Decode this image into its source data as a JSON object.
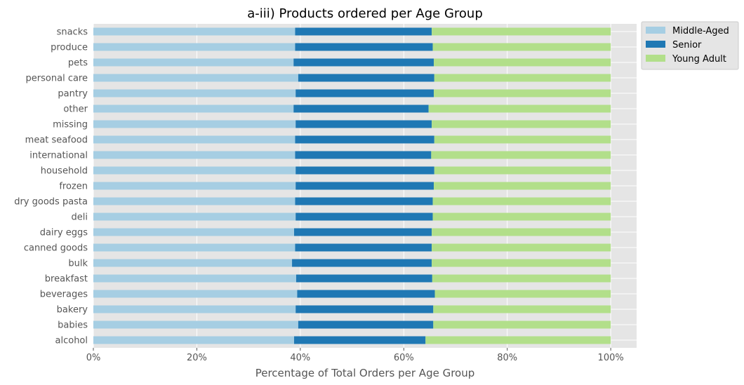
{
  "chart_data": {
    "type": "bar",
    "orientation": "horizontal",
    "stacked": true,
    "title": "a-iii) Products ordered per Age Group",
    "xlabel": "Percentage of Total Orders per Age Group",
    "ylabel": "",
    "xlim": [
      0,
      1.05
    ],
    "xticks": [
      0,
      0.2,
      0.4,
      0.6,
      0.8,
      1.0
    ],
    "xtick_labels": [
      "0%",
      "20%",
      "40%",
      "60%",
      "80%",
      "100%"
    ],
    "grid": true,
    "legend_placement": "outside-top-right",
    "categories": [
      "alcohol",
      "babies",
      "bakery",
      "beverages",
      "breakfast",
      "bulk",
      "canned goods",
      "dairy eggs",
      "deli",
      "dry goods pasta",
      "frozen",
      "household",
      "international",
      "meat seafood",
      "missing",
      "other",
      "pantry",
      "personal care",
      "pets",
      "produce",
      "snacks"
    ],
    "series": [
      {
        "name": "Middle-Aged",
        "color": "#a6cee3",
        "values": [
          0.388,
          0.396,
          0.391,
          0.394,
          0.392,
          0.384,
          0.39,
          0.388,
          0.391,
          0.39,
          0.391,
          0.391,
          0.39,
          0.39,
          0.391,
          0.387,
          0.391,
          0.396,
          0.387,
          0.39,
          0.39
        ]
      },
      {
        "name": "Senior",
        "color": "#1f78b4",
        "values": [
          0.254,
          0.261,
          0.266,
          0.266,
          0.263,
          0.27,
          0.264,
          0.266,
          0.265,
          0.266,
          0.267,
          0.268,
          0.263,
          0.269,
          0.263,
          0.261,
          0.267,
          0.263,
          0.271,
          0.266,
          0.264
        ]
      },
      {
        "name": "Young Adult",
        "color": "#b2df8a",
        "values": [
          0.358,
          0.343,
          0.343,
          0.34,
          0.345,
          0.346,
          0.346,
          0.346,
          0.344,
          0.344,
          0.342,
          0.341,
          0.347,
          0.341,
          0.346,
          0.352,
          0.342,
          0.341,
          0.342,
          0.344,
          0.346
        ]
      }
    ]
  }
}
